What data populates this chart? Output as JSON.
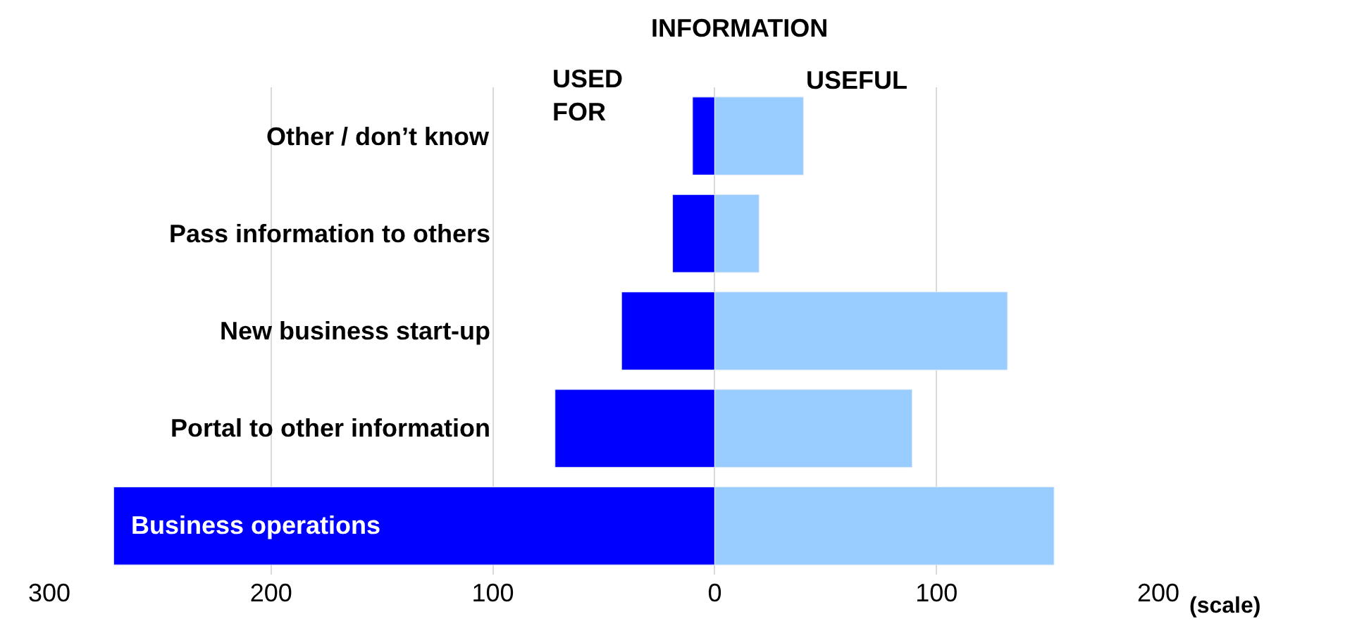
{
  "chart_data": {
    "type": "bar",
    "orientation": "horizontal",
    "title": "INFORMATION",
    "categories": [
      "Other / don’t know",
      "Pass information to others",
      "New business start-up",
      "Portal to other information",
      "Business operations"
    ],
    "series": [
      {
        "name": "USED FOR",
        "color": "#0000ff",
        "values": [
          -10,
          -19,
          -42,
          -72,
          -271
        ]
      },
      {
        "name": "USEFUL",
        "color": "#99ccff",
        "values": [
          40,
          20,
          132,
          89,
          153
        ]
      }
    ],
    "xlim": [
      -300,
      200
    ],
    "xticks": [
      {
        "value": -300,
        "label": "300"
      },
      {
        "value": -200,
        "label": "200"
      },
      {
        "value": -100,
        "label": "100"
      },
      0,
      100,
      200
    ],
    "annotations": [
      "(scale)"
    ],
    "grid": "x",
    "legend": false,
    "stacked": true,
    "tick_labels": "x"
  }
}
